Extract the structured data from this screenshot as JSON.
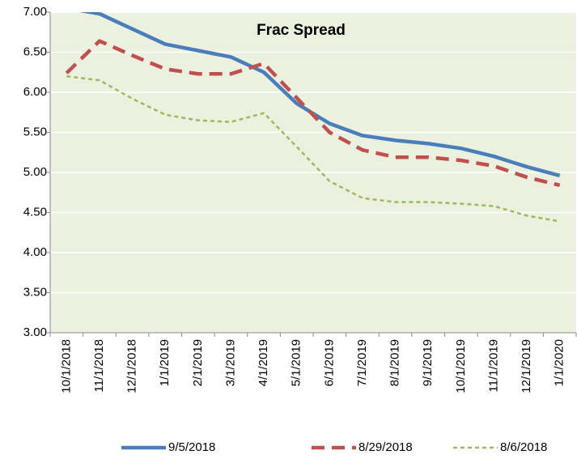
{
  "chart_data": {
    "type": "line",
    "title": "Frac Spread",
    "categories": [
      "10/1/2018",
      "11/1/2018",
      "12/1/2018",
      "1/1/2019",
      "2/1/2019",
      "3/1/2019",
      "4/1/2019",
      "5/1/2019",
      "6/1/2019",
      "7/1/2019",
      "8/1/2019",
      "9/1/2019",
      "10/1/2019",
      "11/1/2019",
      "12/1/2019",
      "1/1/2020"
    ],
    "series": [
      {
        "name": "9/5/2018",
        "color": "#4a7ebb",
        "dash": "solid",
        "values": [
          7.05,
          6.98,
          6.79,
          6.6,
          6.52,
          6.44,
          6.25,
          5.86,
          5.61,
          5.46,
          5.4,
          5.36,
          5.3,
          5.2,
          5.07,
          4.96
        ]
      },
      {
        "name": "8/29/2018",
        "color": "#c0504d",
        "dash": "dashed",
        "values": [
          6.24,
          6.64,
          6.46,
          6.29,
          6.23,
          6.23,
          6.36,
          5.93,
          5.5,
          5.28,
          5.19,
          5.19,
          5.15,
          5.08,
          4.94,
          4.84
        ]
      },
      {
        "name": "8/6/2018",
        "color": "#9bbb59",
        "dash": "dotted",
        "values": [
          6.2,
          6.15,
          5.92,
          5.72,
          5.65,
          5.63,
          5.74,
          5.32,
          4.89,
          4.68,
          4.63,
          4.63,
          4.61,
          4.58,
          4.46,
          4.39
        ]
      }
    ],
    "ylim": [
      3,
      7
    ],
    "yticks": [
      {
        "value": 3,
        "label": "3.00"
      },
      {
        "value": 3.5,
        "label": "3.50"
      },
      {
        "value": 4,
        "label": "4.00"
      },
      {
        "value": 4.5,
        "label": "4.50"
      },
      {
        "value": 5,
        "label": "5.00"
      },
      {
        "value": 5.5,
        "label": "5.50"
      },
      {
        "value": 6,
        "label": "6.00"
      },
      {
        "value": 6.5,
        "label": "6.50"
      },
      {
        "value": 7,
        "label": "7.00"
      }
    ],
    "grid": true,
    "legend": "bottom",
    "background": "#ebf1de"
  }
}
